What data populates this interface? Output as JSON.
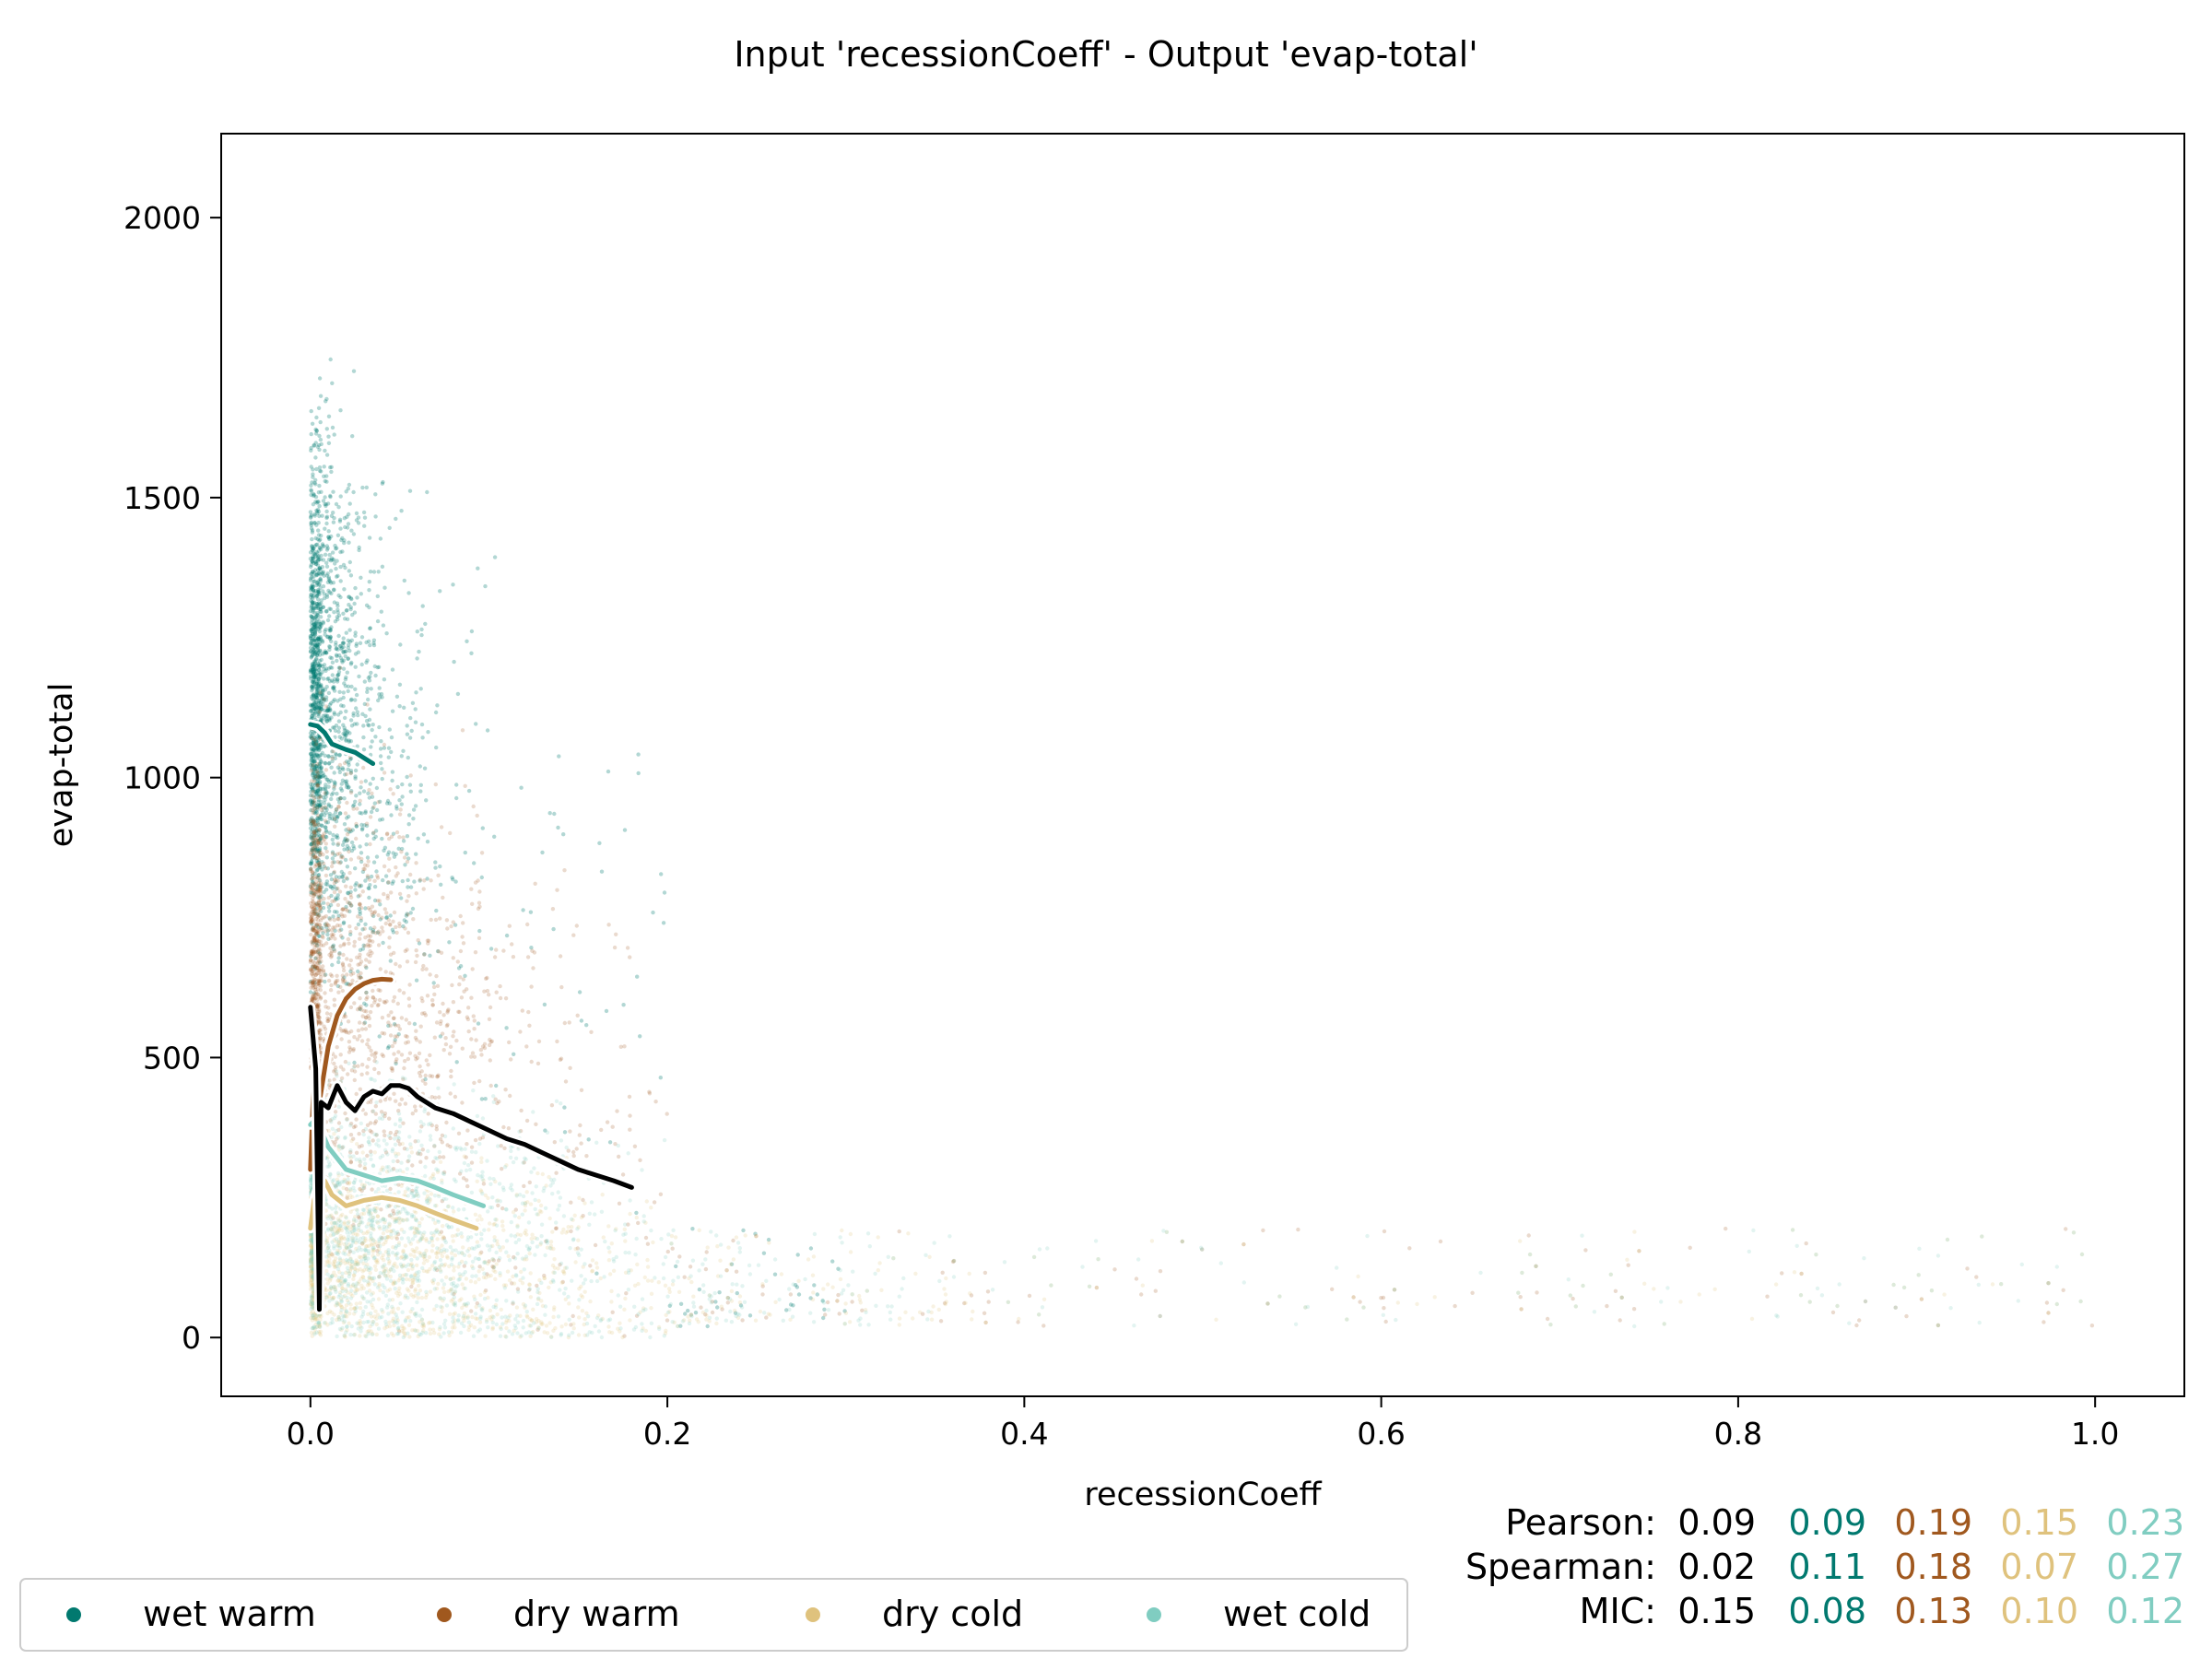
{
  "chart_data": {
    "type": "scatter",
    "title": "Input 'recessionCoeff' - Output 'evap-total'",
    "xlabel": "recessionCoeff",
    "ylabel": "evap-total",
    "xlim": [
      -0.05,
      1.05
    ],
    "ylim": [
      -105,
      2150
    ],
    "x_ticks": [
      0.0,
      0.2,
      0.4,
      0.6,
      0.8,
      1.0
    ],
    "x_tick_labels": [
      "0.0",
      "0.2",
      "0.4",
      "0.6",
      "0.8",
      "1.0"
    ],
    "y_ticks": [
      0,
      500,
      1000,
      1500,
      2000
    ],
    "y_tick_labels": [
      "0",
      "500",
      "1000",
      "1500",
      "2000"
    ],
    "grid": false,
    "legend_position": "bottom-left",
    "series": [
      {
        "name": "wet warm",
        "color": "#01796f",
        "trend": [
          [
            0.0,
            1095
          ],
          [
            0.004,
            1092
          ],
          [
            0.008,
            1080
          ],
          [
            0.012,
            1060
          ],
          [
            0.016,
            1055
          ],
          [
            0.02,
            1050
          ],
          [
            0.025,
            1045
          ],
          [
            0.03,
            1035
          ],
          [
            0.035,
            1025
          ]
        ]
      },
      {
        "name": "dry warm",
        "color": "#a0581e",
        "trend": [
          [
            0.0,
            300
          ],
          [
            0.002,
            470
          ],
          [
            0.005,
            420
          ],
          [
            0.01,
            520
          ],
          [
            0.015,
            575
          ],
          [
            0.02,
            605
          ],
          [
            0.025,
            622
          ],
          [
            0.03,
            632
          ],
          [
            0.035,
            638
          ],
          [
            0.04,
            640
          ],
          [
            0.045,
            639
          ]
        ]
      },
      {
        "name": "dry cold",
        "color": "#dfc27d",
        "trend": [
          [
            0.0,
            195
          ],
          [
            0.002,
            245
          ],
          [
            0.005,
            275
          ],
          [
            0.008,
            280
          ],
          [
            0.012,
            255
          ],
          [
            0.02,
            235
          ],
          [
            0.03,
            245
          ],
          [
            0.04,
            250
          ],
          [
            0.05,
            245
          ],
          [
            0.06,
            235
          ],
          [
            0.07,
            222
          ],
          [
            0.08,
            210
          ],
          [
            0.093,
            195
          ]
        ]
      },
      {
        "name": "wet cold",
        "color": "#80cdc1",
        "trend": [
          [
            0.0,
            380
          ],
          [
            0.003,
            390
          ],
          [
            0.006,
            370
          ],
          [
            0.01,
            340
          ],
          [
            0.015,
            320
          ],
          [
            0.02,
            300
          ],
          [
            0.03,
            290
          ],
          [
            0.04,
            280
          ],
          [
            0.05,
            285
          ],
          [
            0.06,
            280
          ],
          [
            0.07,
            268
          ],
          [
            0.08,
            255
          ],
          [
            0.097,
            235
          ]
        ]
      }
    ],
    "overall_trend": {
      "color": "#000000",
      "points": [
        [
          0.0,
          590
        ],
        [
          0.003,
          480
        ],
        [
          0.005,
          50
        ],
        [
          0.006,
          420
        ],
        [
          0.01,
          410
        ],
        [
          0.015,
          450
        ],
        [
          0.02,
          420
        ],
        [
          0.025,
          405
        ],
        [
          0.03,
          430
        ],
        [
          0.035,
          440
        ],
        [
          0.04,
          435
        ],
        [
          0.045,
          450
        ],
        [
          0.05,
          450
        ],
        [
          0.055,
          445
        ],
        [
          0.06,
          430
        ],
        [
          0.07,
          410
        ],
        [
          0.08,
          400
        ],
        [
          0.09,
          385
        ],
        [
          0.1,
          370
        ],
        [
          0.11,
          355
        ],
        [
          0.12,
          345
        ],
        [
          0.13,
          330
        ],
        [
          0.14,
          315
        ],
        [
          0.15,
          300
        ],
        [
          0.16,
          290
        ],
        [
          0.17,
          280
        ],
        [
          0.18,
          268
        ]
      ]
    },
    "statistics": {
      "rows": [
        {
          "label": "Pearson:",
          "values": [
            "0.09",
            "0.09",
            "0.19",
            "0.15",
            "0.23"
          ]
        },
        {
          "label": "Spearman:",
          "values": [
            "0.02",
            "0.11",
            "0.18",
            "0.07",
            "0.27"
          ]
        },
        {
          "label": "MIC:",
          "values": [
            "0.15",
            "0.08",
            "0.13",
            "0.10",
            "0.12"
          ]
        }
      ],
      "colors": [
        "#000000",
        "#01796f",
        "#a0581e",
        "#dfc27d",
        "#80cdc1"
      ]
    }
  }
}
